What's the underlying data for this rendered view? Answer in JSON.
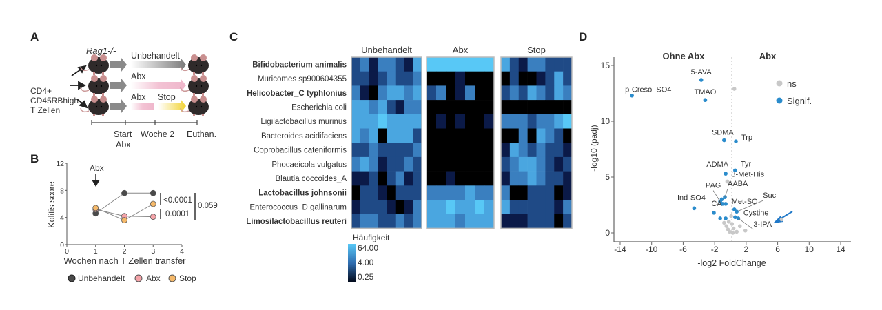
{
  "panels": {
    "a": "A",
    "b": "B",
    "c": "C",
    "d": "D"
  },
  "panel_a": {
    "strain": "Rag1-/-",
    "cells": [
      "CD4+",
      "CD45RBhigh",
      "T Zellen"
    ],
    "groups": [
      "Unbehandelt",
      "Abx",
      "Abx",
      "Stop"
    ],
    "timeline": [
      "Start",
      "Abx",
      "Woche 2",
      "Euthan."
    ],
    "colors": {
      "untreated": "#808080",
      "abx": "#f0b8cc",
      "stop": "#f2d230"
    }
  },
  "chart_data": [
    {
      "type": "line",
      "title": "",
      "xlabel": "Wochen nach T Zellen transfer",
      "ylabel": "Kolitis score",
      "xlim": [
        0,
        4
      ],
      "ylim": [
        0,
        12
      ],
      "xticks": [
        "0",
        "1",
        "2",
        "3",
        "4"
      ],
      "yticks": [
        "0",
        "4",
        "8",
        "12"
      ],
      "annotation": "Abx",
      "x": [
        1,
        2,
        3
      ],
      "series": [
        {
          "name": "Unbehandelt",
          "color": "#4a4a4a",
          "values": [
            4.6,
            7.6,
            7.6
          ]
        },
        {
          "name": "Abx",
          "color": "#f4a3a8",
          "values": [
            5.2,
            4.2,
            4.1
          ]
        },
        {
          "name": "Stop",
          "color": "#f5b96a",
          "values": [
            5.4,
            3.6,
            6.0
          ]
        }
      ],
      "pvalues": [
        "<0.0001",
        "0.0001",
        "0.059"
      ]
    },
    {
      "type": "heatmap",
      "groups": [
        "Unbehandelt",
        "Abx",
        "Stop"
      ],
      "rows": [
        {
          "name": "Bifidobacterium animalis",
          "bold": true
        },
        {
          "name": "Muricomes sp900604355",
          "bold": false
        },
        {
          "name": "Helicobacter_C typhlonius",
          "bold": true
        },
        {
          "name": "Escherichia coli",
          "bold": false
        },
        {
          "name": "Ligilactobacillus murinus",
          "bold": false
        },
        {
          "name": "Bacteroides acidifaciens",
          "bold": false
        },
        {
          "name": "Coprobacillus cateniformis",
          "bold": false
        },
        {
          "name": "Phocaeicola vulgatus",
          "bold": false
        },
        {
          "name": "Blautia coccoides_A",
          "bold": false
        },
        {
          "name": "Lactobacillus johnsonii",
          "bold": true
        },
        {
          "name": "Enterococcus_D gallinarum",
          "bold": false
        },
        {
          "name": "Limosilactobacillus reuteri",
          "bold": true
        }
      ],
      "level_colors": [
        "#000000",
        "#0b1a48",
        "#1f4a86",
        "#3a7fbf",
        "#4aa6e0",
        "#58c8f6"
      ],
      "matrices": [
        [
          [
            2,
            3,
            1,
            3,
            3,
            2,
            1,
            4
          ],
          [
            2,
            2,
            1,
            2,
            3,
            2,
            2,
            3
          ],
          [
            3,
            1,
            0,
            3,
            4,
            4,
            3,
            4
          ],
          [
            4,
            4,
            3,
            4,
            2,
            1,
            3,
            3
          ],
          [
            4,
            4,
            4,
            5,
            4,
            4,
            4,
            4
          ],
          [
            4,
            3,
            4,
            0,
            4,
            4,
            4,
            2
          ],
          [
            2,
            2,
            3,
            2,
            2,
            2,
            2,
            3
          ],
          [
            3,
            4,
            3,
            1,
            2,
            2,
            3,
            2
          ],
          [
            1,
            1,
            2,
            0,
            2,
            3,
            1,
            2
          ],
          [
            0,
            2,
            2,
            1,
            0,
            2,
            2,
            2
          ],
          [
            1,
            2,
            2,
            2,
            1,
            0,
            1,
            3
          ],
          [
            2,
            3,
            3,
            2,
            2,
            3,
            2,
            3
          ]
        ],
        [
          [
            5,
            5,
            5,
            5,
            5,
            5,
            5
          ],
          [
            0,
            0,
            0,
            1,
            0,
            0,
            0
          ],
          [
            2,
            3,
            0,
            1,
            3,
            0,
            0
          ],
          [
            0,
            0,
            0,
            0,
            0,
            0,
            0
          ],
          [
            0,
            1,
            0,
            1,
            0,
            0,
            1
          ],
          [
            0,
            0,
            0,
            0,
            0,
            0,
            0
          ],
          [
            0,
            0,
            0,
            0,
            0,
            0,
            0
          ],
          [
            0,
            0,
            0,
            0,
            0,
            0,
            0
          ],
          [
            0,
            0,
            1,
            0,
            0,
            0,
            0
          ],
          [
            3,
            3,
            3,
            3,
            4,
            3,
            3
          ],
          [
            4,
            4,
            5,
            4,
            4,
            5,
            4
          ],
          [
            4,
            4,
            4,
            3,
            4,
            4,
            4
          ]
        ],
        [
          [
            4,
            2,
            1,
            3,
            3,
            2,
            2,
            2
          ],
          [
            0,
            2,
            0,
            0,
            1,
            2,
            4,
            2
          ],
          [
            2,
            3,
            2,
            4,
            3,
            2,
            4,
            3
          ],
          [
            0,
            0,
            0,
            0,
            0,
            0,
            0,
            0
          ],
          [
            3,
            3,
            3,
            2,
            3,
            3,
            4,
            5
          ],
          [
            0,
            0,
            3,
            0,
            4,
            3,
            2,
            0
          ],
          [
            1,
            4,
            3,
            2,
            3,
            2,
            2,
            1
          ],
          [
            2,
            3,
            4,
            4,
            3,
            2,
            1,
            2
          ],
          [
            1,
            3,
            3,
            4,
            3,
            2,
            2,
            1
          ],
          [
            3,
            0,
            0,
            2,
            2,
            2,
            0,
            1
          ],
          [
            4,
            2,
            2,
            2,
            2,
            2,
            1,
            3
          ],
          [
            1,
            1,
            1,
            2,
            2,
            2,
            0,
            2
          ]
        ]
      ],
      "legend_title": "Häufigkeit",
      "legend_ticks": [
        "64.00",
        "4.00",
        "0.25"
      ]
    },
    {
      "type": "scatter",
      "xlabel": "-log2 FoldChange",
      "ylabel": "-log10 (padj)",
      "xlim": [
        -15,
        17
      ],
      "ylim": [
        -0.5,
        16
      ],
      "xticks": [
        "-14",
        "-10",
        "-6",
        "-2",
        "2",
        "6",
        "10",
        "14"
      ],
      "yticks": [
        "0",
        "5",
        "10",
        "15"
      ],
      "side_labels": [
        "Ohne Abx",
        "Abx"
      ],
      "legend": [
        {
          "name": "ns",
          "color": "#c8c8c8"
        },
        {
          "name": "Signif.",
          "color": "#2b8ccc"
        }
      ],
      "points": [
        {
          "label": "p-Cresol-SO4",
          "x": -12.5,
          "y": 12.3,
          "sig": true
        },
        {
          "label": "5-AVA",
          "x": -3.7,
          "y": 13.7,
          "sig": true
        },
        {
          "label": "TMAO",
          "x": -3.2,
          "y": 11.9,
          "sig": true
        },
        {
          "label": "SDMA",
          "x": -0.8,
          "y": 8.3,
          "sig": true
        },
        {
          "label": "Trp",
          "x": 0.7,
          "y": 8.2,
          "sig": true
        },
        {
          "label": "ADMA",
          "x": -0.6,
          "y": 5.3,
          "sig": true
        },
        {
          "label": "Tyr",
          "x": 0.6,
          "y": 5.6,
          "sig": true
        },
        {
          "label": "3-Met-His",
          "x": -0.4,
          "y": 4.6,
          "sig": false
        },
        {
          "label": "PAG",
          "x": -1.3,
          "y": 2.8,
          "sig": true
        },
        {
          "label": "AABA",
          "x": -0.7,
          "y": 3.2,
          "sig": true
        },
        {
          "label": "Ind-SO4",
          "x": -4.6,
          "y": 2.2,
          "sig": true
        },
        {
          "label": "CA",
          "x": -2.1,
          "y": 1.8,
          "sig": true
        },
        {
          "label": "Met-SO",
          "x": 0.5,
          "y": 2.1,
          "sig": true
        },
        {
          "label": "Suc",
          "x": 0.8,
          "y": 1.9,
          "sig": true
        },
        {
          "label": "Cystine",
          "x": 0.6,
          "y": 1.4,
          "sig": true
        },
        {
          "label": "3-IPA",
          "x": 1.0,
          "y": 1.3,
          "sig": true
        },
        {
          "label": "",
          "x": -1.1,
          "y": 3.0,
          "sig": true
        },
        {
          "label": "",
          "x": -1.0,
          "y": 2.6,
          "sig": true
        },
        {
          "label": "",
          "x": -0.6,
          "y": 2.6,
          "sig": true
        },
        {
          "label": "",
          "x": -1.3,
          "y": 1.3,
          "sig": true
        },
        {
          "label": "",
          "x": -0.6,
          "y": 1.3,
          "sig": true
        },
        {
          "label": "",
          "x": 0.5,
          "y": 12.9,
          "sig": false
        },
        {
          "label": "",
          "x": 6.5,
          "y": 1.2,
          "sig": false
        },
        {
          "label": "",
          "x": -0.2,
          "y": 1.0,
          "sig": false
        },
        {
          "label": "",
          "x": 0.2,
          "y": 0.8,
          "sig": false
        },
        {
          "label": "",
          "x": -0.5,
          "y": 0.6,
          "sig": false
        },
        {
          "label": "",
          "x": 0.4,
          "y": 0.4,
          "sig": false
        },
        {
          "label": "",
          "x": -0.1,
          "y": 0.1,
          "sig": false
        },
        {
          "label": "",
          "x": 0.3,
          "y": 0.0,
          "sig": false
        },
        {
          "label": "",
          "x": 0.8,
          "y": 0.1,
          "sig": false
        },
        {
          "label": "",
          "x": -0.8,
          "y": 0.9,
          "sig": false
        },
        {
          "label": "",
          "x": 0.1,
          "y": 1.5,
          "sig": false
        },
        {
          "label": "",
          "x": 1.9,
          "y": 0.2,
          "sig": false
        },
        {
          "label": "",
          "x": 1.2,
          "y": 0.6,
          "sig": false
        },
        {
          "label": "",
          "x": -0.3,
          "y": 0.3,
          "sig": false
        }
      ]
    }
  ]
}
